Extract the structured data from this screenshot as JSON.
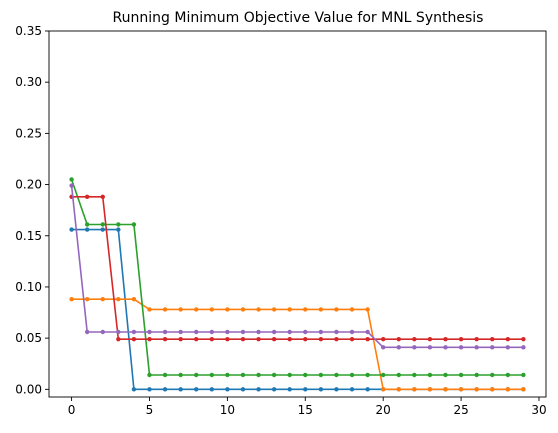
{
  "chart_data": {
    "type": "line",
    "title": "Running Minimum Objective Value for MNL Synthesis",
    "xlabel": "",
    "ylabel": "",
    "xlim": [
      -1.45,
      30.45
    ],
    "ylim": [
      -0.0075,
      0.35
    ],
    "x_ticks": [
      0,
      5,
      10,
      15,
      20,
      25,
      30
    ],
    "y_ticks": [
      0.0,
      0.05,
      0.1,
      0.15,
      0.2,
      0.25,
      0.3,
      0.35
    ],
    "x_tick_labels": [
      "0",
      "5",
      "10",
      "15",
      "20",
      "25",
      "30"
    ],
    "y_tick_labels": [
      "0.00",
      "0.05",
      "0.10",
      "0.15",
      "0.20",
      "0.25",
      "0.30",
      "0.35"
    ],
    "grid": false,
    "legend": "none",
    "markers": "dot",
    "x": [
      0,
      1,
      2,
      3,
      4,
      5,
      6,
      7,
      8,
      9,
      10,
      11,
      12,
      13,
      14,
      15,
      16,
      17,
      18,
      19,
      20,
      21,
      22,
      23,
      24,
      25,
      26,
      27,
      28,
      29
    ],
    "series": [
      {
        "color": "#1f77b4",
        "values": [
          0.156,
          0.156,
          0.156,
          0.156,
          0,
          0,
          0,
          0,
          0,
          0,
          0,
          0,
          0,
          0,
          0,
          0,
          0,
          0,
          0,
          0,
          0,
          0,
          0,
          0,
          0,
          0,
          0,
          0,
          0,
          0
        ]
      },
      {
        "color": "#ff7f0e",
        "values": [
          0.088,
          0.088,
          0.088,
          0.088,
          0.088,
          0.078,
          0.078,
          0.078,
          0.078,
          0.078,
          0.078,
          0.078,
          0.078,
          0.078,
          0.078,
          0.078,
          0.078,
          0.078,
          0.078,
          0.078,
          0,
          0,
          0,
          0,
          0,
          0,
          0,
          0,
          0,
          0
        ]
      },
      {
        "color": "#2ca02c",
        "values": [
          0.205,
          0.161,
          0.161,
          0.161,
          0.161,
          0.014,
          0.014,
          0.014,
          0.014,
          0.014,
          0.014,
          0.014,
          0.014,
          0.014,
          0.014,
          0.014,
          0.014,
          0.014,
          0.014,
          0.014,
          0.014,
          0.014,
          0.014,
          0.014,
          0.014,
          0.014,
          0.014,
          0.014,
          0.014,
          0.014
        ]
      },
      {
        "color": "#d62728",
        "values": [
          0.188,
          0.188,
          0.188,
          0.049,
          0.049,
          0.049,
          0.049,
          0.049,
          0.049,
          0.049,
          0.049,
          0.049,
          0.049,
          0.049,
          0.049,
          0.049,
          0.049,
          0.049,
          0.049,
          0.049,
          0.049,
          0.049,
          0.049,
          0.049,
          0.049,
          0.049,
          0.049,
          0.049,
          0.049,
          0.049
        ]
      },
      {
        "color": "#9467bd",
        "values": [
          0.199,
          0.056,
          0.056,
          0.056,
          0.056,
          0.056,
          0.056,
          0.056,
          0.056,
          0.056,
          0.056,
          0.056,
          0.056,
          0.056,
          0.056,
          0.056,
          0.056,
          0.056,
          0.056,
          0.056,
          0.041,
          0.041,
          0.041,
          0.041,
          0.041,
          0.041,
          0.041,
          0.041,
          0.041,
          0.041
        ]
      }
    ]
  }
}
